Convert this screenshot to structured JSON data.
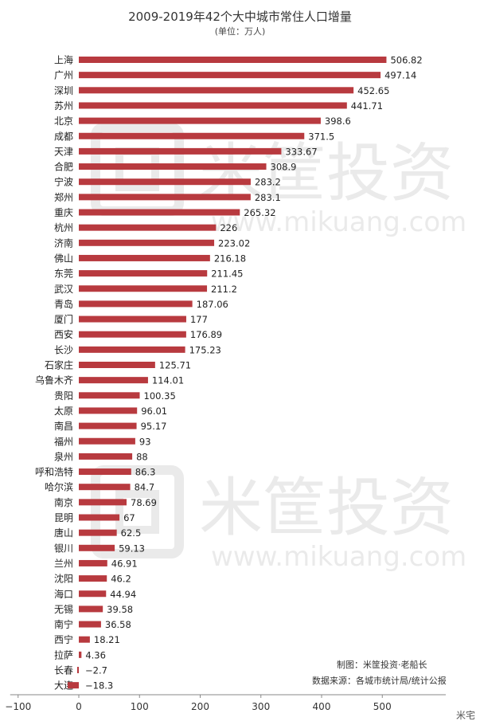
{
  "title": "2009-2019年42个大中城市常住人口增量",
  "subtitle": "(单位：万人)",
  "credits": {
    "made_by": "制图：米筐投资·老船长",
    "source": "数据来源：各城市统计局/统计公报"
  },
  "watermark": {
    "brand": "米筐投资",
    "url": "www.mikuang.com",
    "corner": "米宅"
  },
  "colors": {
    "bar": "#b83a3f",
    "axis": "#888888",
    "background": "#ffffff"
  },
  "chart_data": {
    "type": "bar",
    "orientation": "horizontal",
    "title": "2009-2019年42个大中城市常住人口增量",
    "subtitle": "(单位：万人)",
    "xlim": [
      -100,
      500
    ],
    "xticks": [
      -100,
      0,
      100,
      200,
      300,
      400,
      500
    ],
    "xtick_labels": [
      "−100",
      "0",
      "100",
      "200",
      "300",
      "400",
      "500"
    ],
    "grid": false,
    "legend": false,
    "categories": [
      "上海",
      "广州",
      "深圳",
      "苏州",
      "北京",
      "成都",
      "天津",
      "合肥",
      "宁波",
      "郑州",
      "重庆",
      "杭州",
      "济南",
      "佛山",
      "东莞",
      "武汉",
      "青岛",
      "厦门",
      "西安",
      "长沙",
      "石家庄",
      "乌鲁木齐",
      "贵阳",
      "太原",
      "南昌",
      "福州",
      "泉州",
      "呼和浩特",
      "哈尔滨",
      "南京",
      "昆明",
      "唐山",
      "银川",
      "兰州",
      "沈阳",
      "海口",
      "无锡",
      "南宁",
      "西宁",
      "拉萨",
      "长春",
      "大连"
    ],
    "values": [
      506.82,
      497.14,
      452.65,
      441.71,
      398.6,
      371.5,
      333.67,
      308.9,
      283.2,
      283.1,
      265.32,
      226,
      223.02,
      216.18,
      211.45,
      211.2,
      187.06,
      177,
      176.89,
      175.23,
      125.71,
      114.01,
      100.35,
      96.01,
      95.17,
      93,
      88,
      86.3,
      84.7,
      78.69,
      67,
      62.5,
      59.13,
      46.91,
      46.2,
      44.94,
      39.58,
      36.58,
      18.21,
      4.36,
      -2.7,
      -18.3
    ],
    "value_labels": [
      "506.82",
      "497.14",
      "452.65",
      "441.71",
      "398.6",
      "371.5",
      "333.67",
      "308.9",
      "283.2",
      "283.1",
      "265.32",
      "226",
      "223.02",
      "216.18",
      "211.45",
      "211.2",
      "187.06",
      "177",
      "176.89",
      "175.23",
      "125.71",
      "114.01",
      "100.35",
      "96.01",
      "95.17",
      "93",
      "88",
      "86.3",
      "84.7",
      "78.69",
      "67",
      "62.5",
      "59.13",
      "46.91",
      "46.2",
      "44.94",
      "39.58",
      "36.58",
      "18.21",
      "4.36",
      "−2.7",
      "−18.3"
    ]
  }
}
